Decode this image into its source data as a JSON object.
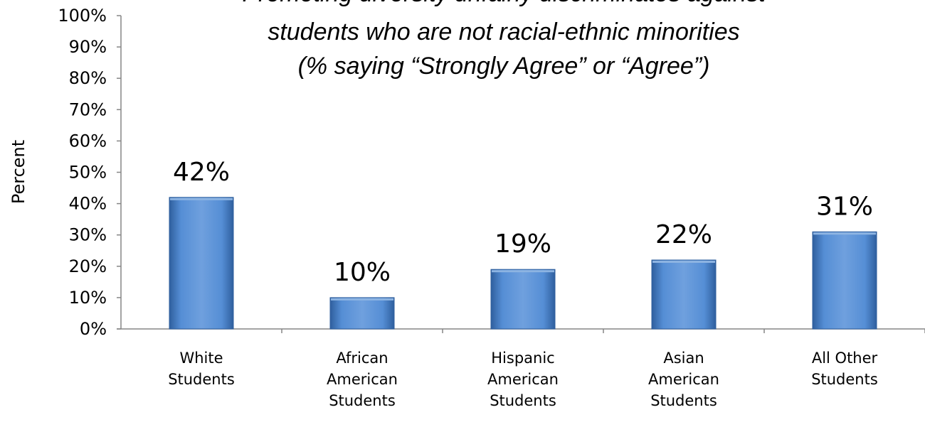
{
  "chart_data": {
    "type": "bar",
    "title_lines": [
      "Promoting diversity unfairly discriminates against",
      "students who are not racial-ethnic minorities",
      "(% saying “Strongly Agree” or “Agree”)"
    ],
    "ylabel": "Percent",
    "xlabel": "",
    "categories": [
      [
        "White",
        "Students"
      ],
      [
        "African",
        "American",
        "Students"
      ],
      [
        "Hispanic",
        "American",
        "Students"
      ],
      [
        "Asian",
        "American",
        "Students"
      ],
      [
        "All Other",
        "Students"
      ]
    ],
    "values": [
      42,
      10,
      19,
      22,
      31
    ],
    "data_labels": [
      "42%",
      "10%",
      "19%",
      "22%",
      "31%"
    ],
    "ylim": [
      0,
      100
    ],
    "yticks": [
      0,
      10,
      20,
      30,
      40,
      50,
      60,
      70,
      80,
      90,
      100
    ],
    "ytick_labels": [
      "0%",
      "10%",
      "20%",
      "30%",
      "40%",
      "50%",
      "60%",
      "70%",
      "80%",
      "90%",
      "100%"
    ],
    "grid": false,
    "legend": "none",
    "colors": {
      "bar_fill": "#558ED5",
      "bar_light": "#8DB4E2",
      "bar_dark": "#2F5F9E",
      "axis": "#868686"
    }
  }
}
